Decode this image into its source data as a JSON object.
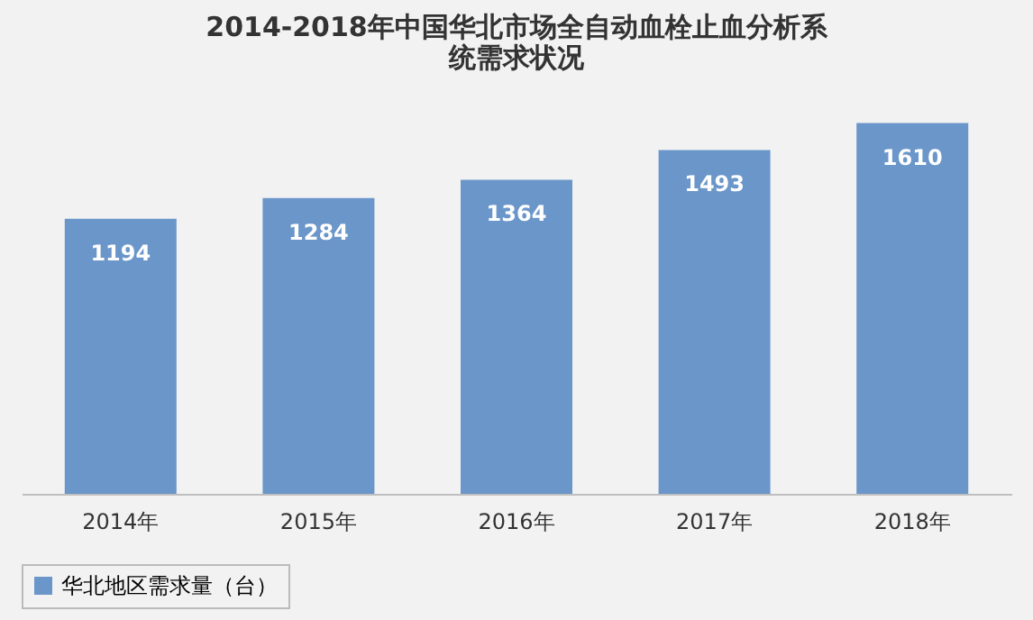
{
  "chart_data": {
    "type": "bar",
    "title": "2014-2018年中国华北市场全自动血栓止血分析系统需求状况",
    "categories": [
      "2014年",
      "2015年",
      "2016年",
      "2017年",
      "2018年"
    ],
    "series": [
      {
        "name": "华北地区需求量（台）",
        "color": "#6b96c9",
        "values": [
          1194,
          1284,
          1364,
          1493,
          1610
        ]
      }
    ],
    "tick_labels": "x",
    "data_labels": true,
    "grid": false,
    "legend": "bottom"
  }
}
